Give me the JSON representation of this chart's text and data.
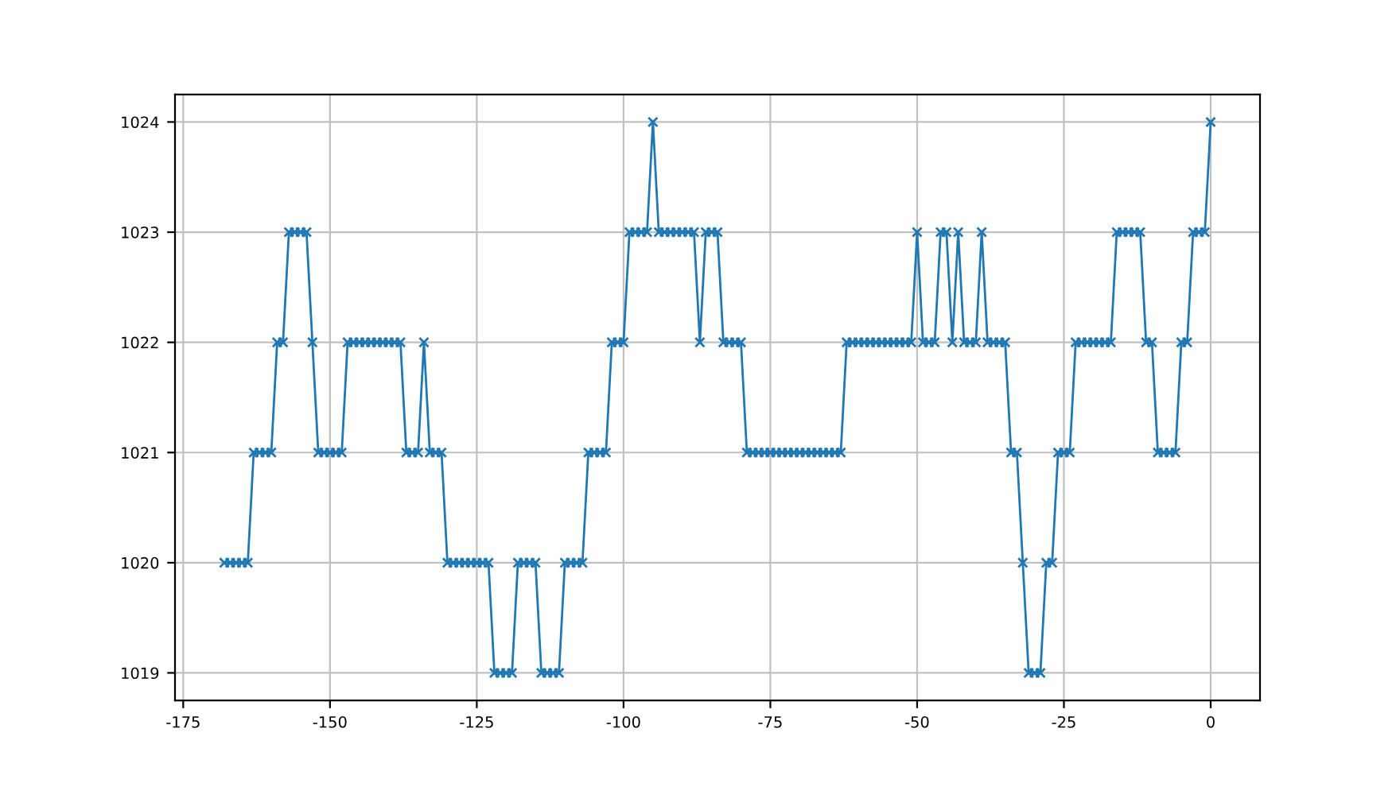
{
  "chart_data": {
    "type": "line",
    "x": [
      -168,
      -167,
      -166,
      -165,
      -164,
      -163,
      -162,
      -161,
      -160,
      -159,
      -158,
      -157,
      -156,
      -155,
      -154,
      -153,
      -152,
      -151,
      -150,
      -149,
      -148,
      -147,
      -146,
      -145,
      -144,
      -143,
      -142,
      -141,
      -140,
      -139,
      -138,
      -137,
      -136,
      -135,
      -134,
      -133,
      -132,
      -131,
      -130,
      -129,
      -128,
      -127,
      -126,
      -125,
      -124,
      -123,
      -122,
      -121,
      -120,
      -119,
      -118,
      -117,
      -116,
      -115,
      -114,
      -113,
      -112,
      -111,
      -110,
      -109,
      -108,
      -107,
      -106,
      -105,
      -104,
      -103,
      -102,
      -101,
      -100,
      -99,
      -98,
      -97,
      -96,
      -95,
      -94,
      -93,
      -92,
      -91,
      -90,
      -89,
      -88,
      -87,
      -86,
      -85,
      -84,
      -83,
      -82,
      -81,
      -80,
      -79,
      -78,
      -77,
      -76,
      -75,
      -74,
      -73,
      -72,
      -71,
      -70,
      -69,
      -68,
      -67,
      -66,
      -65,
      -64,
      -63,
      -62,
      -61,
      -60,
      -59,
      -58,
      -57,
      -56,
      -55,
      -54,
      -53,
      -52,
      -51,
      -50,
      -49,
      -48,
      -47,
      -46,
      -45,
      -44,
      -43,
      -42,
      -41,
      -40,
      -39,
      -38,
      -37,
      -36,
      -35,
      -34,
      -33,
      -32,
      -31,
      -30,
      -29,
      -28,
      -27,
      -26,
      -25,
      -24,
      -23,
      -22,
      -21,
      -20,
      -19,
      -18,
      -17,
      -16,
      -15,
      -14,
      -13,
      -12,
      -11,
      -10,
      -9,
      -8,
      -7,
      -6,
      -5,
      -4,
      -3,
      -2,
      -1,
      0
    ],
    "series": [
      {
        "color": "#1f77b4",
        "values": [
          1020,
          1020,
          1020,
          1020,
          1020,
          1021,
          1021,
          1021,
          1021,
          1022,
          1022,
          1023,
          1023,
          1023,
          1023,
          1022,
          1021,
          1021,
          1021,
          1021,
          1021,
          1022,
          1022,
          1022,
          1022,
          1022,
          1022,
          1022,
          1022,
          1022,
          1022,
          1021,
          1021,
          1021,
          1022,
          1021,
          1021,
          1021,
          1020,
          1020,
          1020,
          1020,
          1020,
          1020,
          1020,
          1020,
          1019,
          1019,
          1019,
          1019,
          1020,
          1020,
          1020,
          1020,
          1019,
          1019,
          1019,
          1019,
          1020,
          1020,
          1020,
          1020,
          1021,
          1021,
          1021,
          1021,
          1022,
          1022,
          1022,
          1023,
          1023,
          1023,
          1023,
          1024,
          1023,
          1023,
          1023,
          1023,
          1023,
          1023,
          1023,
          1022,
          1023,
          1023,
          1023,
          1022,
          1022,
          1022,
          1022,
          1021,
          1021,
          1021,
          1021,
          1021,
          1021,
          1021,
          1021,
          1021,
          1021,
          1021,
          1021,
          1021,
          1021,
          1021,
          1021,
          1021,
          1022,
          1022,
          1022,
          1022,
          1022,
          1022,
          1022,
          1022,
          1022,
          1022,
          1022,
          1022,
          1023,
          1022,
          1022,
          1022,
          1023,
          1023,
          1022,
          1023,
          1022,
          1022,
          1022,
          1023,
          1022,
          1022,
          1022,
          1022,
          1021,
          1021,
          1020,
          1019,
          1019,
          1019,
          1020,
          1020,
          1021,
          1021,
          1021,
          1022,
          1022,
          1022,
          1022,
          1022,
          1022,
          1022,
          1023,
          1023,
          1023,
          1023,
          1023,
          1022,
          1022,
          1021,
          1021,
          1021,
          1021,
          1022,
          1022,
          1023,
          1023,
          1023,
          1024
        ]
      }
    ],
    "xlim": [
      -176.4,
      8.4
    ],
    "ylim": [
      1018.75,
      1024.25
    ],
    "xticks": [
      -175,
      -150,
      -125,
      -100,
      -75,
      -50,
      -25,
      0
    ],
    "yticks": [
      1019,
      1020,
      1021,
      1022,
      1023,
      1024
    ],
    "grid": true,
    "marker": "cross",
    "line_style": "solid"
  }
}
